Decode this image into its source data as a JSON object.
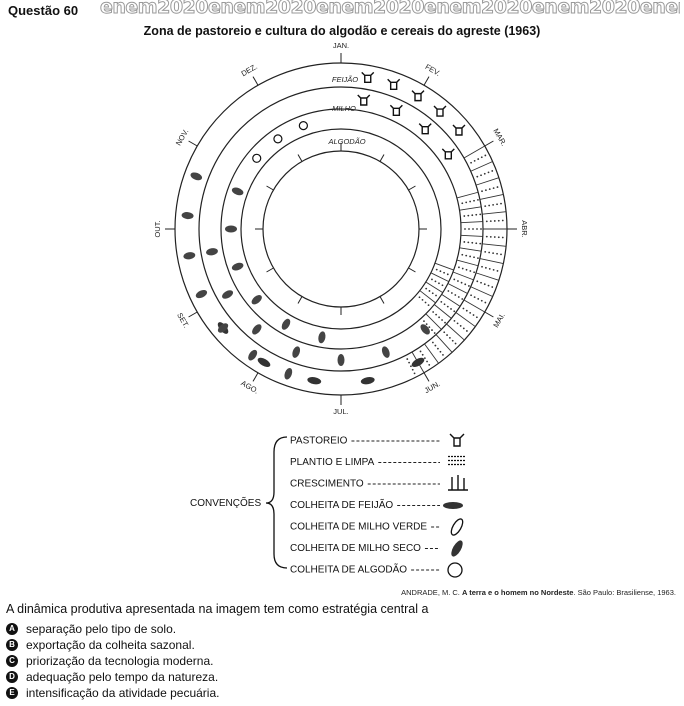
{
  "header": {
    "question_label": "Questão 60",
    "banner_text": "enem2020enem2020enem2020enem2020enem2020enem2020"
  },
  "figure": {
    "title": "Zona de pastoreio e cultura do algodão e cereais do agreste (1963)",
    "months": [
      "JAN.",
      "FEV.",
      "MAR.",
      "ABR.",
      "MAI.",
      "JUN.",
      "JUL.",
      "AGO.",
      "SET.",
      "OUT.",
      "NOV.",
      "DEZ."
    ],
    "rings": [
      "FEIJÃO",
      "MILHO",
      "ALGODÃO"
    ],
    "legend_group": "CONVENÇÕES",
    "legend": [
      {
        "label": "PASTOREIO",
        "icon": "cattle-icon"
      },
      {
        "label": "PLANTIO E LIMPA",
        "icon": "planting-icon"
      },
      {
        "label": "CRESCIMENTO",
        "icon": "growth-icon"
      },
      {
        "label": "COLHEITA DE FEIJÃO",
        "icon": "bean-harvest-icon"
      },
      {
        "label": "COLHEITA DE MILHO VERDE",
        "icon": "green-corn-icon"
      },
      {
        "label": "COLHEITA DE MILHO SECO",
        "icon": "dry-corn-icon"
      },
      {
        "label": "COLHEITA DE ALGODÃO",
        "icon": "cotton-icon"
      }
    ]
  },
  "citation": {
    "author": "ANDRADE, M. C.",
    "work": "A terra e o homem no Nordeste",
    "rest": ". São Paulo: Brasiliense, 1963."
  },
  "question": {
    "stem": "A dinâmica produtiva apresentada na imagem tem como estratégia central a",
    "options": [
      {
        "letter": "A",
        "text": "separação pelo tipo de solo."
      },
      {
        "letter": "B",
        "text": "exportação da colheita sazonal."
      },
      {
        "letter": "C",
        "text": "priorização da tecnologia moderna."
      },
      {
        "letter": "D",
        "text": "adequação pelo tempo da natureza."
      },
      {
        "letter": "E",
        "text": "intensificação da atividade pecuária."
      }
    ]
  }
}
